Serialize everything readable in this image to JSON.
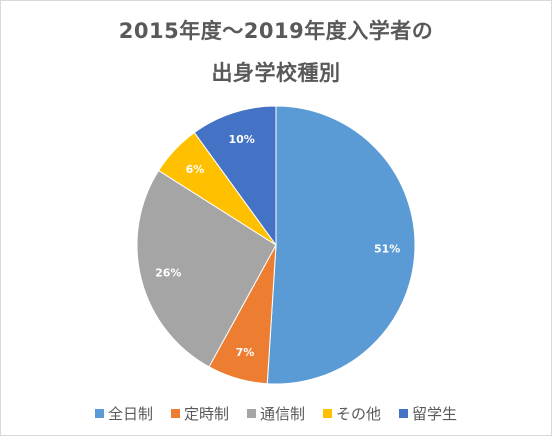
{
  "chart_data": {
    "type": "pie",
    "title_lines": [
      "2015年度～2019年度入学者の",
      "出身学校種別"
    ],
    "categories": [
      "全日制",
      "定時制",
      "通信制",
      "その他",
      "留学生"
    ],
    "values": [
      51,
      7,
      26,
      6,
      10
    ],
    "labels": [
      "51%",
      "7%",
      "26%",
      "6%",
      "10%"
    ],
    "colors": [
      "#5b9bd5",
      "#ed7d31",
      "#a5a5a5",
      "#ffc000",
      "#4472c4"
    ],
    "legend_position": "bottom",
    "start_angle_deg": 0,
    "direction": "clockwise"
  }
}
